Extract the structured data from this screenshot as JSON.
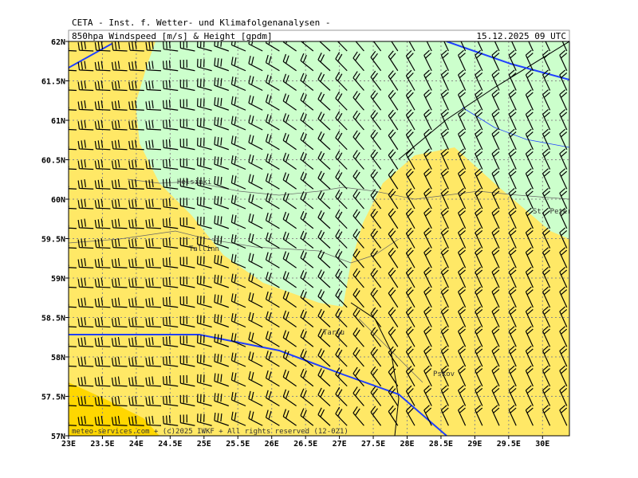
{
  "header": {
    "title": "CETA - Inst. f. Wetter- und Klimafolgenanalysen -",
    "subtitle": "850hpa Windspeed [m/s] & Height [gpdm]",
    "datetime": "15.12.2025 09 UTC"
  },
  "map": {
    "lat_labels": [
      "62N",
      "61.5N",
      "61N",
      "60.5N",
      "60N",
      "59.5N",
      "59N",
      "58.5N",
      "58N",
      "57.5N",
      "57N"
    ],
    "lon_labels": [
      "23E",
      "23.5E",
      "24E",
      "24.5E",
      "25E",
      "25.5E",
      "26E",
      "26.5E",
      "27E",
      "27.5E",
      "28E",
      "28.5E",
      "29E",
      "29.5E",
      "30E"
    ],
    "places": [
      {
        "label": "Helsinki"
      },
      {
        "label": "Tallinn"
      },
      {
        "label": "Tartu"
      },
      {
        "label": "Pskov"
      },
      {
        "label": "St. Petersbg."
      }
    ]
  },
  "footer": "meteo-services.com + (c)2025 IWKF + All rights reserved (12-021)"
}
